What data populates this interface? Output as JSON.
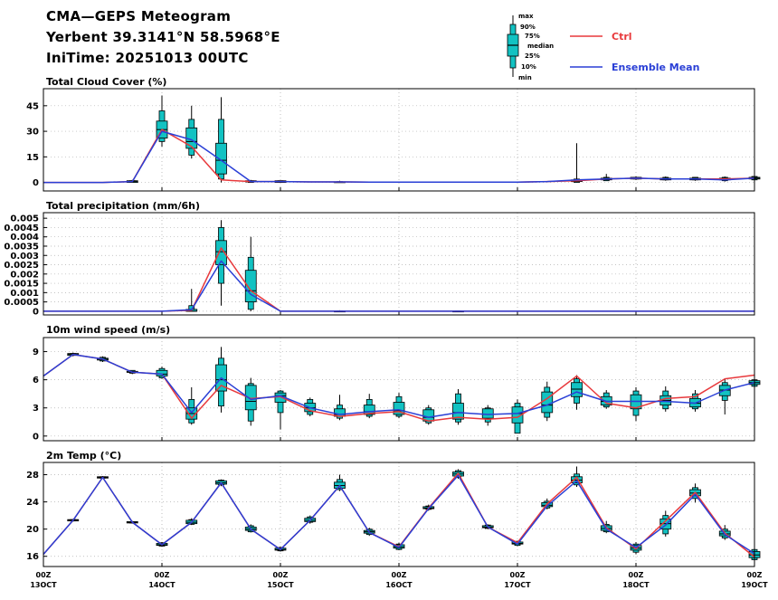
{
  "header": {
    "line1": "CMA—GEPS Meteogram",
    "line2": "Yerbent 39.3141°N 58.5968°E",
    "line3": "IniTime: 20251013 00UTC"
  },
  "legend": {
    "box_labels": [
      "max",
      "90%",
      "75%",
      "median",
      "25%",
      "10%",
      "min"
    ],
    "ctrl": {
      "label": "Ctrl",
      "color": "#e8393c"
    },
    "mean": {
      "label": "Ensemble Mean",
      "color": "#2a3fd6"
    }
  },
  "colors": {
    "box_fill": "#12c2c2",
    "grid": "#b0b0b0"
  },
  "x_axis": {
    "ticks": [
      {
        "x": 0,
        "l1": "00Z",
        "l2": "13OCT"
      },
      {
        "x": 24,
        "l1": "00Z",
        "l2": "14OCT"
      },
      {
        "x": 48,
        "l1": "00Z",
        "l2": "15OCT"
      },
      {
        "x": 72,
        "l1": "00Z",
        "l2": "16OCT"
      },
      {
        "x": 96,
        "l1": "00Z",
        "l2": "17OCT"
      },
      {
        "x": 120,
        "l1": "00Z",
        "l2": "18OCT"
      },
      {
        "x": 144,
        "l1": "00Z",
        "l2": "19OCT"
      }
    ],
    "range": [
      0,
      144
    ]
  },
  "chart_data": [
    {
      "type": "box",
      "title": "Total Cloud Cover (%)",
      "ylim": [
        -5,
        55
      ],
      "yticks": [
        0,
        15,
        30,
        45
      ],
      "ytick_labels": [
        "0",
        "15",
        "30",
        "45"
      ],
      "x": [
        0,
        6,
        12,
        18,
        24,
        30,
        36,
        42,
        48,
        54,
        60,
        66,
        72,
        78,
        84,
        90,
        96,
        102,
        108,
        114,
        120,
        126,
        132,
        138,
        144
      ],
      "ctrl": [
        0,
        0,
        0,
        0.5,
        31,
        21,
        1.5,
        0.5,
        0.5,
        0.3,
        0.3,
        0.2,
        0.2,
        0.2,
        0.2,
        0.2,
        0.2,
        0.5,
        1,
        2,
        2.5,
        2,
        2,
        2,
        2.5
      ],
      "mean": [
        0,
        0,
        0,
        0.5,
        30,
        25,
        13,
        0.5,
        0.5,
        0.3,
        0.3,
        0.2,
        0.2,
        0.2,
        0.2,
        0.2,
        0.2,
        0.5,
        1.5,
        2,
        2.5,
        2,
        2,
        1.5,
        2.5
      ],
      "boxes": [
        {
          "x": 18,
          "min": 0,
          "p10": 0,
          "p25": 0,
          "median": 0.5,
          "p75": 1,
          "p90": 1,
          "max": 1.5
        },
        {
          "x": 24,
          "min": 21,
          "p10": 24,
          "p25": 26,
          "median": 31,
          "p75": 36,
          "p90": 42,
          "max": 51
        },
        {
          "x": 30,
          "min": 14,
          "p10": 16,
          "p25": 20,
          "median": 24,
          "p75": 32,
          "p90": 37,
          "max": 45
        },
        {
          "x": 36,
          "min": 0,
          "p10": 2,
          "p25": 5,
          "median": 13,
          "p75": 23,
          "p90": 37,
          "max": 50
        },
        {
          "x": 42,
          "min": 0,
          "p10": 0,
          "p25": 0.3,
          "median": 0.5,
          "p75": 1,
          "p90": 1,
          "max": 1.5
        },
        {
          "x": 48,
          "min": 0,
          "p10": 0,
          "p25": 0,
          "median": 0.3,
          "p75": 1,
          "p90": 1,
          "max": 1
        },
        {
          "x": 60,
          "min": 0,
          "p10": 0,
          "p25": 0,
          "median": 0,
          "p75": 0.3,
          "p90": 0.5,
          "max": 1
        },
        {
          "x": 108,
          "min": 0,
          "p10": 0,
          "p25": 0.5,
          "median": 1,
          "p75": 1.5,
          "p90": 2,
          "max": 23
        },
        {
          "x": 114,
          "min": 1,
          "p10": 1,
          "p25": 1.5,
          "median": 2,
          "p75": 2.5,
          "p90": 3,
          "max": 5
        },
        {
          "x": 120,
          "min": 1.5,
          "p10": 2,
          "p25": 2,
          "median": 2.5,
          "p75": 3,
          "p90": 3,
          "max": 3.5
        },
        {
          "x": 126,
          "min": 1,
          "p10": 1.5,
          "p25": 1.5,
          "median": 2,
          "p75": 2.5,
          "p90": 3,
          "max": 3.5
        },
        {
          "x": 132,
          "min": 1,
          "p10": 1.5,
          "p25": 1.5,
          "median": 2,
          "p75": 2.5,
          "p90": 3,
          "max": 3
        },
        {
          "x": 138,
          "min": 0.5,
          "p10": 1,
          "p25": 1.5,
          "median": 2,
          "p75": 2.5,
          "p90": 3,
          "max": 3.5
        },
        {
          "x": 144,
          "min": 1,
          "p10": 1.5,
          "p25": 2,
          "median": 2.5,
          "p75": 3,
          "p90": 3.5,
          "max": 4
        }
      ]
    },
    {
      "type": "box",
      "title": "Total precipitation (mm/6h)",
      "ylim": [
        -0.0002,
        0.0053
      ],
      "yticks": [
        0,
        0.0005,
        0.001,
        0.0015,
        0.002,
        0.0025,
        0.003,
        0.0035,
        0.004,
        0.0045,
        0.005
      ],
      "ytick_labels": [
        "0",
        "0.0005",
        "0.001",
        "0.0015",
        "0.002",
        "0.0025",
        "0.003",
        "0.0035",
        "0.004",
        "0.0045",
        "0.005"
      ],
      "x": [
        0,
        6,
        12,
        18,
        24,
        30,
        36,
        42,
        48,
        54,
        60,
        66,
        72,
        78,
        84,
        90,
        96,
        102,
        108,
        114,
        120,
        126,
        132,
        138,
        144
      ],
      "ctrl": [
        0,
        0,
        0,
        0,
        0,
        5e-05,
        0.0034,
        0.0011,
        0,
        0,
        0,
        0,
        0,
        0,
        0,
        0,
        0,
        0,
        0,
        0,
        0,
        0,
        0,
        0,
        0
      ],
      "mean": [
        0,
        0,
        0,
        0,
        0,
        8e-05,
        0.0027,
        0.0009,
        0,
        0,
        0,
        0,
        0,
        0,
        0,
        0,
        0,
        0,
        0,
        0,
        0,
        0,
        0,
        0,
        0
      ],
      "boxes": [
        {
          "x": 30,
          "min": 0,
          "p10": 0,
          "p25": 0,
          "median": 0,
          "p75": 0.0001,
          "p90": 0.0003,
          "max": 0.0012
        },
        {
          "x": 36,
          "min": 0.0003,
          "p10": 0.0015,
          "p25": 0.0025,
          "median": 0.0032,
          "p75": 0.0038,
          "p90": 0.0045,
          "max": 0.0049
        },
        {
          "x": 42,
          "min": 0,
          "p10": 0.0001,
          "p25": 0.0005,
          "median": 0.0011,
          "p75": 0.0022,
          "p90": 0.0029,
          "max": 0.004
        },
        {
          "x": 60,
          "min": 0,
          "p10": 0,
          "p25": 0,
          "median": 0,
          "p75": 0,
          "p90": 2e-05,
          "max": 5e-05
        },
        {
          "x": 84,
          "min": 0,
          "p10": 0,
          "p25": 0,
          "median": 0,
          "p75": 0,
          "p90": 2e-05,
          "max": 3e-05
        }
      ]
    },
    {
      "type": "box",
      "title": "10m wind speed (m/s)",
      "ylim": [
        -0.5,
        10.5
      ],
      "yticks": [
        0,
        3,
        6,
        9
      ],
      "ytick_labels": [
        "0",
        "3",
        "6",
        "9"
      ],
      "x": [
        0,
        6,
        12,
        18,
        24,
        30,
        36,
        42,
        48,
        54,
        60,
        66,
        72,
        78,
        84,
        90,
        96,
        102,
        108,
        114,
        120,
        126,
        132,
        138,
        144
      ],
      "ctrl": [
        6.4,
        8.7,
        8.2,
        6.8,
        6.6,
        1.9,
        5.4,
        4.0,
        4.2,
        2.7,
        2.1,
        2.4,
        2.6,
        1.6,
        2.0,
        1.8,
        2.0,
        4.0,
        6.4,
        3.5,
        3.0,
        4.0,
        4.2,
        6.1,
        6.5
      ],
      "mean": [
        6.4,
        8.7,
        8.2,
        6.8,
        6.6,
        2.5,
        6.2,
        3.9,
        4.3,
        3.0,
        2.3,
        2.6,
        2.8,
        2.0,
        2.5,
        2.3,
        2.4,
        3.3,
        4.7,
        3.7,
        3.7,
        3.7,
        3.5,
        4.9,
        5.7
      ],
      "boxes": [
        {
          "x": 6,
          "min": 8.5,
          "p10": 8.6,
          "p25": 8.6,
          "median": 8.7,
          "p75": 8.8,
          "p90": 8.8,
          "max": 8.9
        },
        {
          "x": 12,
          "min": 7.9,
          "p10": 8.0,
          "p25": 8.1,
          "median": 8.2,
          "p75": 8.3,
          "p90": 8.4,
          "max": 8.5
        },
        {
          "x": 18,
          "min": 6.6,
          "p10": 6.7,
          "p25": 6.8,
          "median": 6.8,
          "p75": 6.9,
          "p90": 7.0,
          "max": 7.0
        },
        {
          "x": 24,
          "min": 6.1,
          "p10": 6.2,
          "p25": 6.4,
          "median": 6.6,
          "p75": 7.0,
          "p90": 7.2,
          "max": 7.4
        },
        {
          "x": 30,
          "min": 1.2,
          "p10": 1.4,
          "p25": 1.8,
          "median": 2.4,
          "p75": 3.0,
          "p90": 3.9,
          "max": 5.2
        },
        {
          "x": 36,
          "min": 2.5,
          "p10": 3.2,
          "p25": 4.8,
          "median": 6.0,
          "p75": 7.6,
          "p90": 8.3,
          "max": 9.5
        },
        {
          "x": 42,
          "min": 1.1,
          "p10": 1.6,
          "p25": 2.8,
          "median": 3.7,
          "p75": 5.4,
          "p90": 5.6,
          "max": 6.2
        },
        {
          "x": 48,
          "min": 0.7,
          "p10": 2.5,
          "p25": 3.6,
          "median": 4.3,
          "p75": 4.6,
          "p90": 4.8,
          "max": 4.9
        },
        {
          "x": 54,
          "min": 2.1,
          "p10": 2.3,
          "p25": 2.6,
          "median": 3.0,
          "p75": 3.5,
          "p90": 3.9,
          "max": 4.1
        },
        {
          "x": 60,
          "min": 1.7,
          "p10": 1.9,
          "p25": 2.1,
          "median": 2.3,
          "p75": 2.9,
          "p90": 3.3,
          "max": 4.4
        },
        {
          "x": 66,
          "min": 1.9,
          "p10": 2.1,
          "p25": 2.3,
          "median": 2.6,
          "p75": 3.3,
          "p90": 3.9,
          "max": 4.5
        },
        {
          "x": 72,
          "min": 1.9,
          "p10": 2.1,
          "p25": 2.3,
          "median": 2.7,
          "p75": 3.6,
          "p90": 4.2,
          "max": 4.6
        },
        {
          "x": 78,
          "min": 1.2,
          "p10": 1.4,
          "p25": 1.6,
          "median": 2.0,
          "p75": 2.8,
          "p90": 3.0,
          "max": 3.3
        },
        {
          "x": 84,
          "min": 1.2,
          "p10": 1.5,
          "p25": 1.8,
          "median": 2.5,
          "p75": 3.5,
          "p90": 4.5,
          "max": 5.0
        },
        {
          "x": 90,
          "min": 1.1,
          "p10": 1.5,
          "p25": 1.9,
          "median": 2.3,
          "p75": 2.9,
          "p90": 3.0,
          "max": 3.3
        },
        {
          "x": 96,
          "min": 0.3,
          "p10": 0.3,
          "p25": 1.4,
          "median": 2.4,
          "p75": 3.1,
          "p90": 3.5,
          "max": 3.9
        },
        {
          "x": 102,
          "min": 1.6,
          "p10": 2.0,
          "p25": 2.5,
          "median": 3.3,
          "p75": 4.7,
          "p90": 5.2,
          "max": 5.8
        },
        {
          "x": 108,
          "min": 2.8,
          "p10": 3.5,
          "p25": 4.2,
          "median": 5.0,
          "p75": 5.7,
          "p90": 6.1,
          "max": 6.5
        },
        {
          "x": 114,
          "min": 2.9,
          "p10": 3.1,
          "p25": 3.3,
          "median": 3.7,
          "p75": 4.2,
          "p90": 4.6,
          "max": 4.9
        },
        {
          "x": 120,
          "min": 1.6,
          "p10": 2.2,
          "p25": 2.9,
          "median": 3.7,
          "p75": 4.4,
          "p90": 4.8,
          "max": 5.2
        },
        {
          "x": 126,
          "min": 2.6,
          "p10": 2.9,
          "p25": 3.3,
          "median": 3.8,
          "p75": 4.3,
          "p90": 4.8,
          "max": 5.3
        },
        {
          "x": 132,
          "min": 2.6,
          "p10": 2.9,
          "p25": 3.1,
          "median": 3.5,
          "p75": 4.0,
          "p90": 4.5,
          "max": 4.9
        },
        {
          "x": 138,
          "min": 2.3,
          "p10": 3.8,
          "p25": 4.3,
          "median": 4.9,
          "p75": 5.4,
          "p90": 5.7,
          "max": 6.1
        },
        {
          "x": 144,
          "min": 5.2,
          "p10": 5.3,
          "p25": 5.5,
          "median": 5.7,
          "p75": 5.9,
          "p90": 6.0,
          "max": 6.2
        }
      ]
    },
    {
      "type": "box",
      "title": "2m Temp (°C)",
      "ylim": [
        14.5,
        29.8
      ],
      "yticks": [
        16,
        20,
        24,
        28
      ],
      "ytick_labels": [
        "16",
        "20",
        "24",
        "28"
      ],
      "x": [
        0,
        6,
        12,
        18,
        24,
        30,
        36,
        42,
        48,
        54,
        60,
        66,
        72,
        78,
        84,
        90,
        96,
        102,
        108,
        114,
        120,
        126,
        132,
        138,
        144
      ],
      "ctrl": [
        16.3,
        21.3,
        27.6,
        21.0,
        17.7,
        21.0,
        26.8,
        20.0,
        17.0,
        21.3,
        26.4,
        19.5,
        17.4,
        23.1,
        28.2,
        20.3,
        18.0,
        23.7,
        27.6,
        20.2,
        17.1,
        21.2,
        25.4,
        19.4,
        15.9
      ],
      "mean": [
        16.3,
        21.3,
        27.6,
        21.0,
        17.7,
        21.0,
        26.8,
        20.0,
        17.0,
        21.3,
        26.4,
        19.5,
        17.3,
        23.0,
        27.9,
        20.3,
        17.8,
        23.4,
        27.1,
        20.0,
        17.3,
        20.6,
        25.1,
        19.2,
        16.4
      ],
      "boxes": [
        {
          "x": 6,
          "min": 21.1,
          "p10": 21.2,
          "p25": 21.2,
          "median": 21.3,
          "p75": 21.4,
          "p90": 21.4,
          "max": 21.5
        },
        {
          "x": 12,
          "min": 27.4,
          "p10": 27.5,
          "p25": 27.5,
          "median": 27.6,
          "p75": 27.7,
          "p90": 27.7,
          "max": 27.8
        },
        {
          "x": 18,
          "min": 20.8,
          "p10": 20.9,
          "p25": 20.9,
          "median": 21.0,
          "p75": 21.1,
          "p90": 21.1,
          "max": 21.2
        },
        {
          "x": 24,
          "min": 17.4,
          "p10": 17.5,
          "p25": 17.6,
          "median": 17.7,
          "p75": 17.9,
          "p90": 18.0,
          "max": 18.1
        },
        {
          "x": 30,
          "min": 20.6,
          "p10": 20.7,
          "p25": 20.8,
          "median": 21.0,
          "p75": 21.3,
          "p90": 21.4,
          "max": 21.6
        },
        {
          "x": 36,
          "min": 26.3,
          "p10": 26.5,
          "p25": 26.6,
          "median": 26.8,
          "p75": 27.1,
          "p90": 27.2,
          "max": 27.3
        },
        {
          "x": 42,
          "min": 19.5,
          "p10": 19.6,
          "p25": 19.8,
          "median": 20.0,
          "p75": 20.3,
          "p90": 20.5,
          "max": 20.7
        },
        {
          "x": 48,
          "min": 16.7,
          "p10": 16.8,
          "p25": 16.9,
          "median": 17.0,
          "p75": 17.2,
          "p90": 17.3,
          "max": 17.4
        },
        {
          "x": 54,
          "min": 20.8,
          "p10": 21.0,
          "p25": 21.1,
          "median": 21.3,
          "p75": 21.6,
          "p90": 21.8,
          "max": 22.0
        },
        {
          "x": 60,
          "min": 25.6,
          "p10": 25.8,
          "p25": 26.0,
          "median": 26.4,
          "p75": 26.9,
          "p90": 27.3,
          "max": 28.0
        },
        {
          "x": 66,
          "min": 19.0,
          "p10": 19.2,
          "p25": 19.4,
          "median": 19.6,
          "p75": 19.8,
          "p90": 20.0,
          "max": 20.2
        },
        {
          "x": 72,
          "min": 16.9,
          "p10": 17.0,
          "p25": 17.2,
          "median": 17.4,
          "p75": 17.7,
          "p90": 17.8,
          "max": 18.0
        },
        {
          "x": 78,
          "min": 22.7,
          "p10": 22.9,
          "p25": 23.0,
          "median": 23.1,
          "p75": 23.3,
          "p90": 23.4,
          "max": 23.6
        },
        {
          "x": 84,
          "min": 27.4,
          "p10": 27.6,
          "p25": 27.8,
          "median": 28.1,
          "p75": 28.4,
          "p90": 28.6,
          "max": 28.8
        },
        {
          "x": 90,
          "min": 20.0,
          "p10": 20.1,
          "p25": 20.2,
          "median": 20.3,
          "p75": 20.5,
          "p90": 20.6,
          "max": 20.7
        },
        {
          "x": 96,
          "min": 17.5,
          "p10": 17.6,
          "p25": 17.8,
          "median": 17.9,
          "p75": 18.1,
          "p90": 18.2,
          "max": 18.3
        },
        {
          "x": 102,
          "min": 22.9,
          "p10": 23.1,
          "p25": 23.3,
          "median": 23.5,
          "p75": 23.9,
          "p90": 24.1,
          "max": 24.5
        },
        {
          "x": 108,
          "min": 26.2,
          "p10": 26.5,
          "p25": 26.8,
          "median": 27.2,
          "p75": 27.7,
          "p90": 28.1,
          "max": 29.2
        },
        {
          "x": 114,
          "min": 19.4,
          "p10": 19.6,
          "p25": 19.8,
          "median": 20.1,
          "p75": 20.5,
          "p90": 20.7,
          "max": 21.2
        },
        {
          "x": 120,
          "min": 16.3,
          "p10": 16.6,
          "p25": 16.9,
          "median": 17.2,
          "p75": 17.6,
          "p90": 17.8,
          "max": 18.1
        },
        {
          "x": 126,
          "min": 18.9,
          "p10": 19.3,
          "p25": 20.0,
          "median": 20.8,
          "p75": 21.5,
          "p90": 22.0,
          "max": 22.7
        },
        {
          "x": 132,
          "min": 23.9,
          "p10": 24.5,
          "p25": 24.9,
          "median": 25.3,
          "p75": 25.8,
          "p90": 26.1,
          "max": 26.7
        },
        {
          "x": 138,
          "min": 18.4,
          "p10": 18.7,
          "p25": 19.0,
          "median": 19.3,
          "p75": 19.7,
          "p90": 20.0,
          "max": 20.6
        },
        {
          "x": 144,
          "min": 15.2,
          "p10": 15.5,
          "p25": 15.8,
          "median": 16.2,
          "p75": 16.7,
          "p90": 17.0,
          "max": 17.4
        }
      ]
    }
  ]
}
